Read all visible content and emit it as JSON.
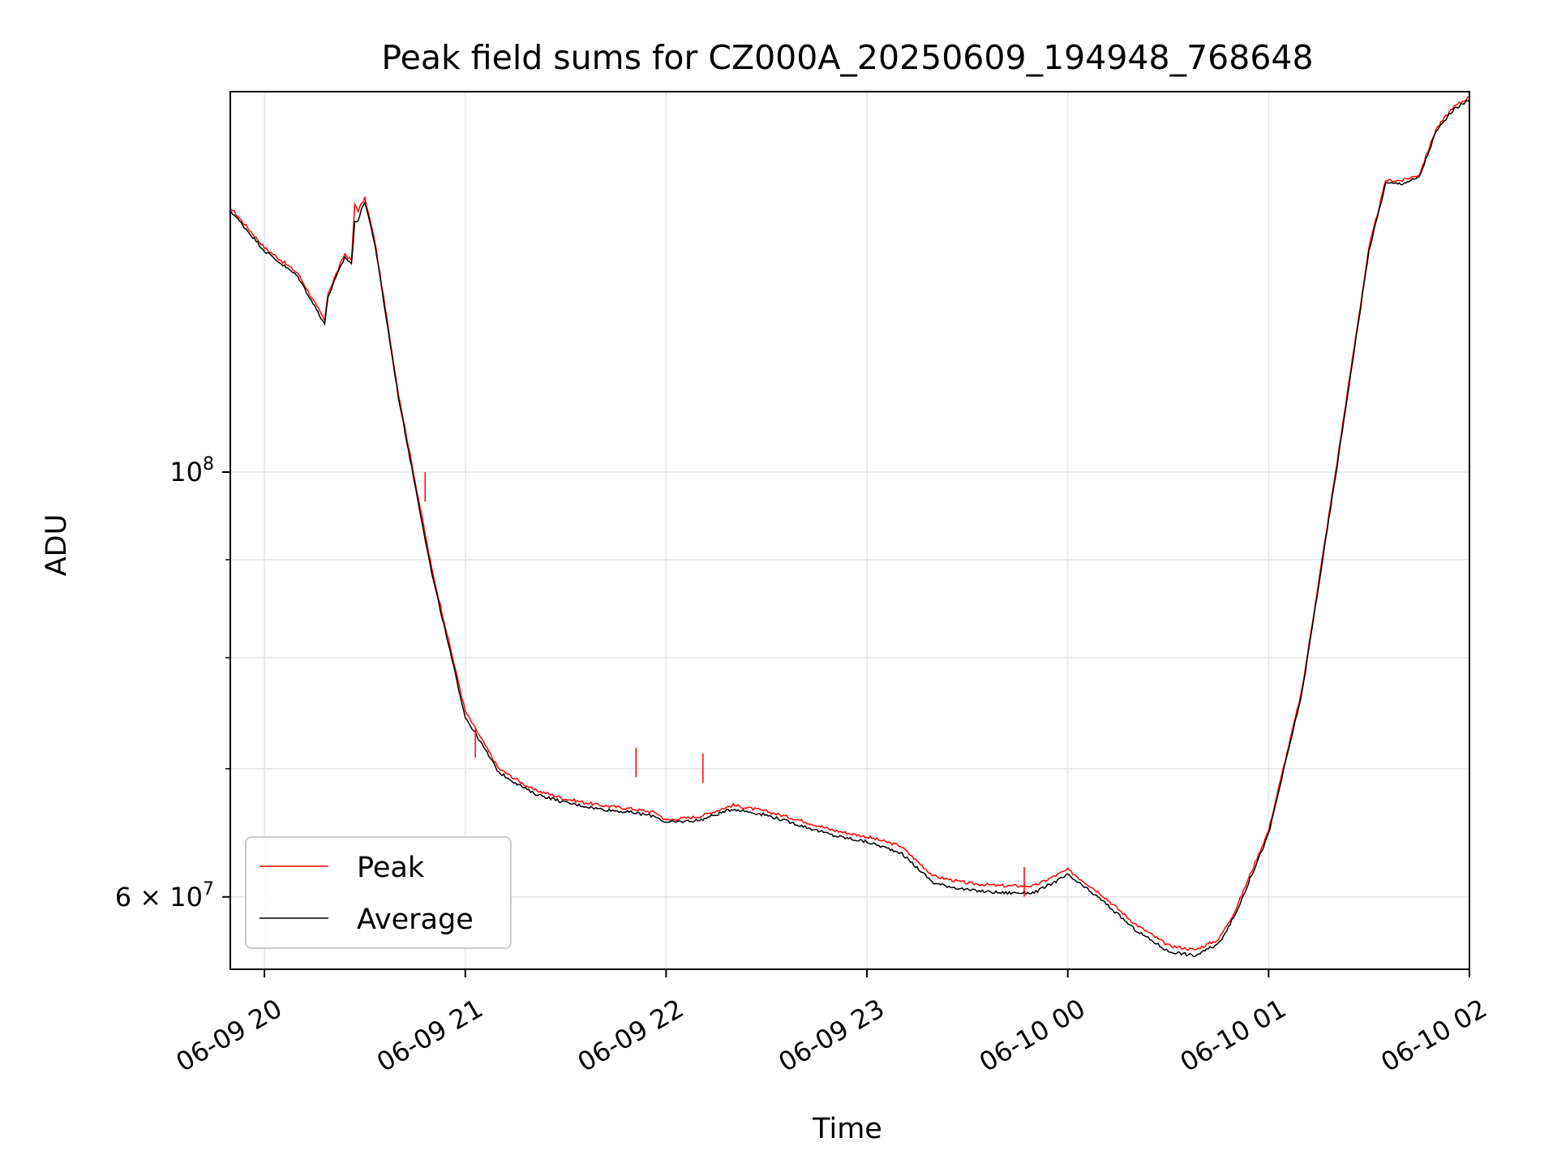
{
  "chart_data": {
    "type": "line",
    "title": "Peak field sums for CZ000A_20250609_194948_768648",
    "xlabel": "Time",
    "ylabel": "ADU",
    "x_start": "06-09 19:49:48",
    "x_end": "06-10 02:00:00",
    "x_range": [
      "06-09 19:49",
      "06-10 02:00"
    ],
    "y_range": [
      55000000,
      158000000
    ],
    "y_scale": "log",
    "x_ticks": [
      "06-09 20",
      "06-09 21",
      "06-09 22",
      "06-09 23",
      "06-10 00",
      "06-10 01",
      "06-10 02"
    ],
    "y_tick_labels": [
      {
        "value": 100000000,
        "base": "10",
        "exp": "8"
      },
      {
        "value": 60000000,
        "prefix": "6 × ",
        "base": "10",
        "exp": "7"
      }
    ],
    "y_minor_ticks": [
      70000000,
      80000000,
      90000000
    ],
    "grid": true,
    "legend_position": "bottom-left",
    "series": [
      {
        "name": "Peak",
        "color": "#ff0000",
        "x": [
          "06-09 19:49",
          "06-09 20:00",
          "06-09 20:10",
          "06-09 20:18",
          "06-09 20:19",
          "06-09 20:24",
          "06-09 20:26",
          "06-09 20:27",
          "06-09 20:28",
          "06-09 20:30",
          "06-09 20:33",
          "06-09 20:40",
          "06-09 20:50",
          "06-09 21:00",
          "06-09 21:10",
          "06-09 21:20",
          "06-09 21:30",
          "06-09 21:40",
          "06-09 21:50",
          "06-09 21:57",
          "06-09 22:00",
          "06-09 22:10",
          "06-09 22:20",
          "06-09 22:30",
          "06-09 22:40",
          "06-09 22:50",
          "06-09 23:00",
          "06-09 23:10",
          "06-09 23:20",
          "06-09 23:30",
          "06-09 23:40",
          "06-09 23:50",
          "06-10 00:00",
          "06-10 00:10",
          "06-10 00:20",
          "06-10 00:30",
          "06-10 00:38",
          "06-10 00:45",
          "06-10 00:50",
          "06-10 01:00",
          "06-10 01:10",
          "06-10 01:20",
          "06-10 01:30",
          "06-10 01:35",
          "06-10 01:40",
          "06-10 01:45",
          "06-10 01:50",
          "06-10 01:55",
          "06-10 02:00"
        ],
        "values": [
          138000000,
          131000000,
          127000000,
          120000000,
          124000000,
          130000000,
          129000000,
          138000000,
          137000000,
          139000000,
          132000000,
          110000000,
          89000000,
          75000000,
          70000000,
          68300000,
          67500000,
          67000000,
          66700000,
          66400000,
          65800000,
          66100000,
          67000000,
          66500000,
          65800000,
          65000000,
          64500000,
          63800000,
          61500000,
          61000000,
          60800000,
          60800000,
          62000000,
          60200000,
          58100000,
          56600000,
          56300000,
          57000000,
          59000000,
          65000000,
          77000000,
          100000000,
          131000000,
          142000000,
          142000000,
          143000000,
          151000000,
          155000000,
          157000000
        ]
      },
      {
        "name": "Average",
        "color": "#000000",
        "x": [
          "06-09 19:49",
          "06-09 20:00",
          "06-09 20:10",
          "06-09 20:18",
          "06-09 20:19",
          "06-09 20:24",
          "06-09 20:26",
          "06-09 20:27",
          "06-09 20:28",
          "06-09 20:30",
          "06-09 20:33",
          "06-09 20:40",
          "06-09 20:50",
          "06-09 21:00",
          "06-09 21:10",
          "06-09 21:20",
          "06-09 21:30",
          "06-09 21:40",
          "06-09 21:50",
          "06-09 21:57",
          "06-09 22:00",
          "06-09 22:10",
          "06-09 22:20",
          "06-09 22:30",
          "06-09 22:40",
          "06-09 22:50",
          "06-09 23:00",
          "06-09 23:10",
          "06-09 23:20",
          "06-09 23:30",
          "06-09 23:40",
          "06-09 23:50",
          "06-10 00:00",
          "06-10 00:10",
          "06-10 00:20",
          "06-10 00:30",
          "06-10 00:38",
          "06-10 00:45",
          "06-10 00:50",
          "06-10 01:00",
          "06-10 01:10",
          "06-10 01:20",
          "06-10 01:30",
          "06-10 01:35",
          "06-10 01:40",
          "06-10 01:45",
          "06-10 01:50",
          "06-10 01:55",
          "06-10 02:00"
        ],
        "values": [
          137500000,
          130500000,
          126500000,
          119500000,
          123500000,
          129500000,
          128500000,
          135000000,
          135500000,
          138500000,
          131500000,
          109500000,
          88500000,
          74500000,
          69700000,
          68000000,
          67200000,
          66700000,
          66400000,
          66100000,
          65600000,
          65800000,
          66700000,
          66200000,
          65400000,
          64600000,
          64100000,
          63300000,
          61000000,
          60500000,
          60300000,
          60300000,
          61600000,
          59800000,
          57700000,
          56200000,
          55900000,
          56700000,
          58700000,
          64700000,
          76700000,
          99500000,
          130500000,
          141500000,
          141500000,
          142500000,
          150500000,
          154500000,
          156500000
        ]
      }
    ]
  }
}
